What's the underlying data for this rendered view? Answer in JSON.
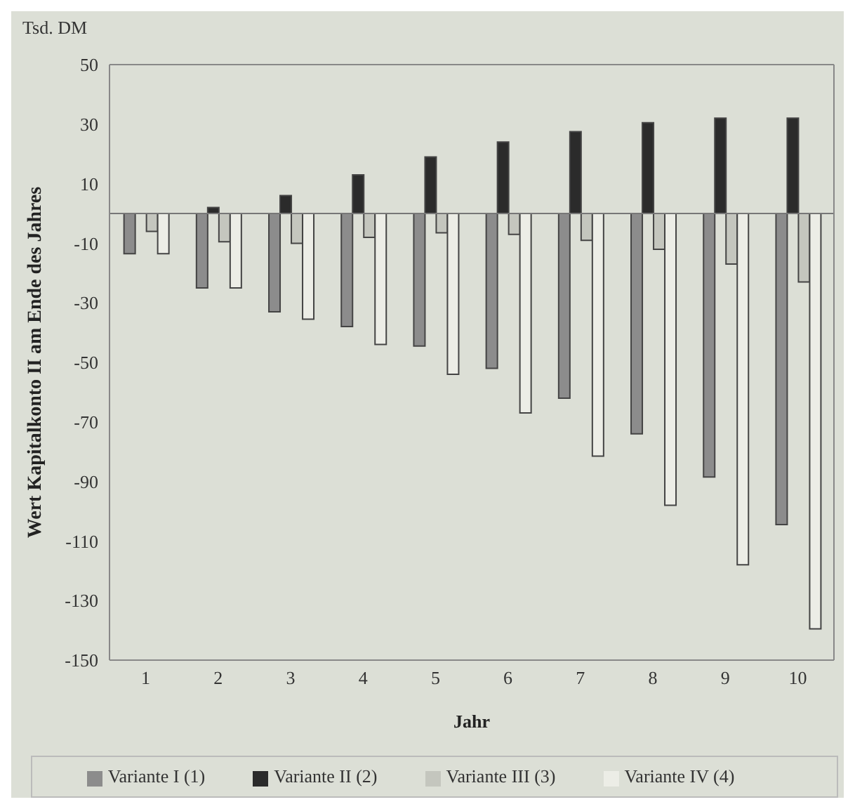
{
  "chart_data": {
    "type": "bar",
    "xlabel": "Jahr",
    "ylabel": "Wert Kapitalkonto II am Ende des Jahres",
    "annotations": [
      "Tsd. DM"
    ],
    "categories": [
      "1",
      "2",
      "3",
      "4",
      "5",
      "6",
      "7",
      "8",
      "9",
      "10"
    ],
    "series": [
      {
        "name": "Variante I (1)",
        "color": "#8c8c8c",
        "values": [
          -13.5,
          -25,
          -33,
          -38,
          -44.5,
          -52,
          -62,
          -74,
          -88.5,
          -104.5
        ]
      },
      {
        "name": "Variante II (2)",
        "color": "#2b2b2b",
        "values": [
          0,
          2,
          6,
          13,
          19,
          24,
          27.5,
          30.5,
          32,
          32
        ]
      },
      {
        "name": "Variante III (3)",
        "color": "#c4c6be",
        "values": [
          -6,
          -9.5,
          -10,
          -8,
          -6.5,
          -7,
          -9,
          -12,
          -17,
          -23
        ]
      },
      {
        "name": "Variante IV (4)",
        "color": "#ecede6",
        "values": [
          -13.5,
          -25,
          -35.5,
          -44,
          -54,
          -67,
          -81.5,
          -98,
          -118,
          -139.5
        ]
      }
    ],
    "ylim": [
      -150,
      50
    ],
    "yticks": [
      -150,
      -130,
      -110,
      -90,
      -70,
      -50,
      -30,
      -10,
      10,
      30,
      50
    ],
    "legend": "bottom"
  }
}
